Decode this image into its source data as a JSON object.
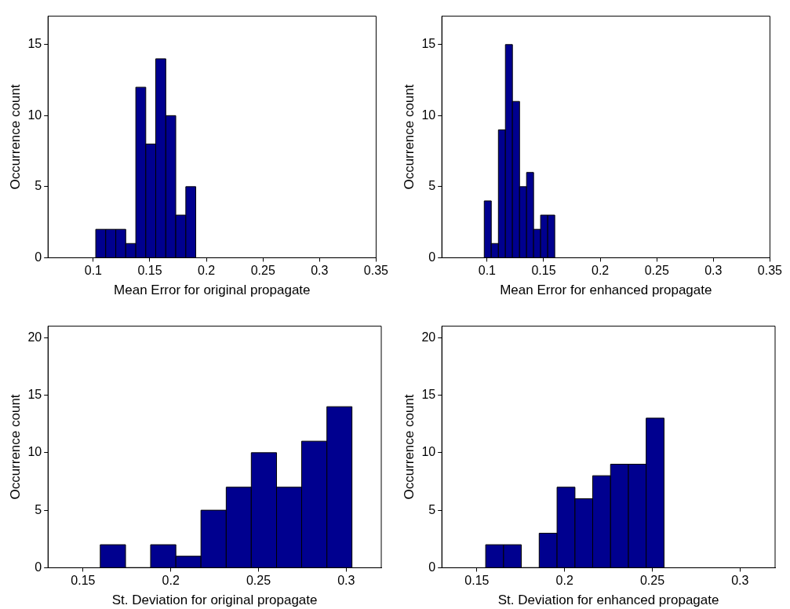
{
  "chart_data": [
    {
      "type": "histogram",
      "xlabel": "Mean Error for original propagate",
      "ylabel": "Occurrence count",
      "color": "#00008f",
      "bins": [
        0.1022,
        0.111,
        0.1199,
        0.1287,
        0.1376,
        0.1464,
        0.1552,
        0.1641,
        0.1729,
        0.1818,
        0.1906
      ],
      "values": [
        2,
        2,
        2,
        1,
        12,
        8,
        14,
        10,
        3,
        5
      ],
      "xlim": [
        0.06,
        0.35
      ],
      "xticks": [
        0.1,
        0.15,
        0.2,
        0.25,
        0.3,
        0.35
      ],
      "ylim": [
        0,
        17
      ],
      "yticks": [
        0,
        5,
        10,
        15
      ]
    },
    {
      "type": "histogram",
      "xlabel": "Mean Error for enhanced propagate",
      "ylabel": "Occurrence count",
      "color": "#00008f",
      "bins": [
        0.0975,
        0.1037,
        0.11,
        0.1162,
        0.1224,
        0.1287,
        0.1349,
        0.1411,
        0.1473,
        0.1536,
        0.1598
      ],
      "values": [
        4,
        1,
        9,
        15,
        11,
        5,
        6,
        2,
        3,
        3
      ],
      "xlim": [
        0.06,
        0.35
      ],
      "xticks": [
        0.1,
        0.15,
        0.2,
        0.25,
        0.3,
        0.35
      ],
      "ylim": [
        0,
        17
      ],
      "yticks": [
        0,
        5,
        10,
        15
      ]
    },
    {
      "type": "histogram",
      "xlabel": "St. Deviation for original propagate",
      "ylabel": "Occurrence count",
      "color": "#00008f",
      "bins": [
        0.1598,
        0.1742,
        0.1885,
        0.2029,
        0.2172,
        0.2316,
        0.2459,
        0.2603,
        0.2746,
        0.289,
        0.3033
      ],
      "values": [
        2,
        0,
        2,
        1,
        5,
        7,
        10,
        7,
        11,
        14
      ],
      "xlim": [
        0.13,
        0.32
      ],
      "xticks": [
        0.15,
        0.2,
        0.25,
        0.3
      ],
      "ylim": [
        0,
        21
      ],
      "yticks": [
        0,
        5,
        10,
        15,
        20
      ]
    },
    {
      "type": "histogram",
      "xlabel": "St. Deviation for enhanced propagate",
      "ylabel": "Occurrence count",
      "color": "#00008f",
      "bins": [
        0.155,
        0.1652,
        0.1753,
        0.1855,
        0.1957,
        0.2059,
        0.216,
        0.2262,
        0.2364,
        0.2465,
        0.2567
      ],
      "values": [
        2,
        2,
        0,
        3,
        7,
        6,
        8,
        9,
        9,
        13
      ],
      "xlim": [
        0.13,
        0.32
      ],
      "xticks": [
        0.15,
        0.2,
        0.25,
        0.3
      ],
      "ylim": [
        0,
        21
      ],
      "yticks": [
        0,
        5,
        10,
        15,
        20
      ]
    }
  ]
}
